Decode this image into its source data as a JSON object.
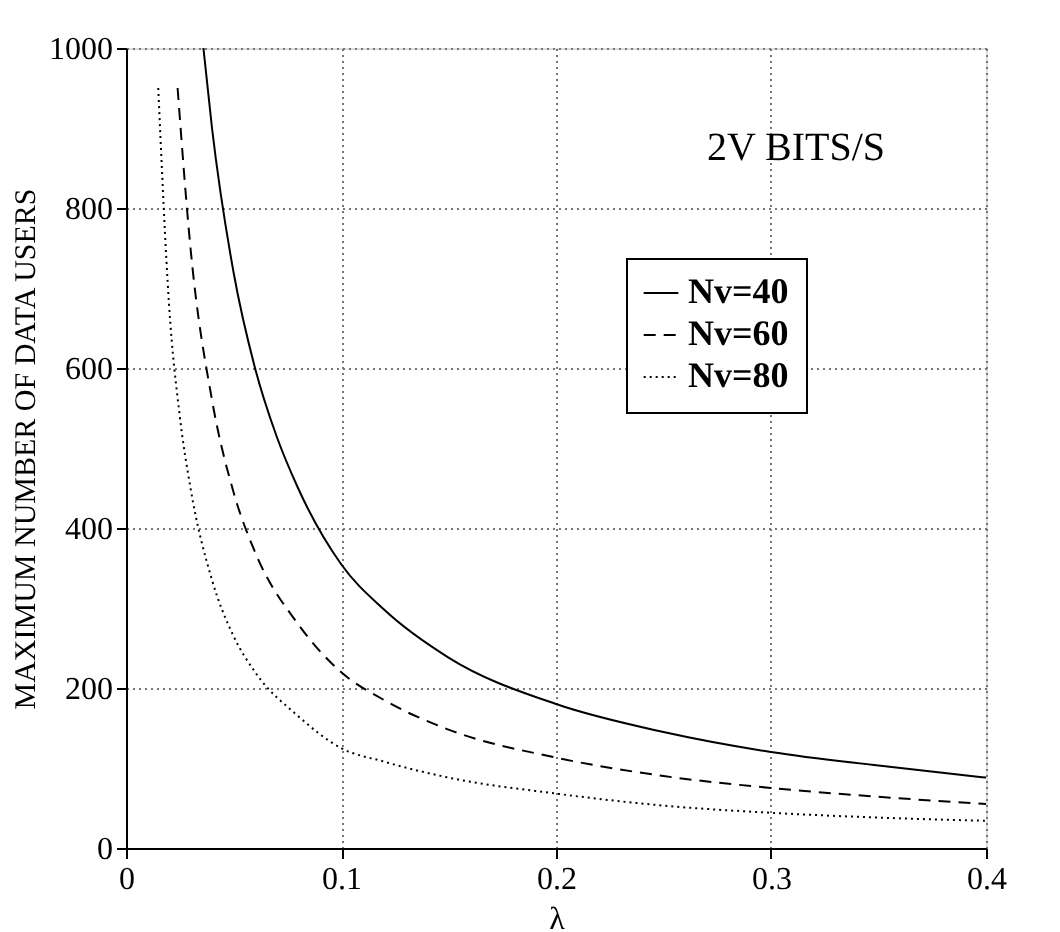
{
  "chart_data": {
    "type": "line",
    "xlabel": "λ",
    "ylabel": "MAXIMUM NUMBER OF DATA USERS",
    "annotations": [
      "2V BITS/S"
    ],
    "xlim": [
      0,
      0.4
    ],
    "ylim": [
      0,
      1000
    ],
    "xticks": [
      0,
      0.1,
      0.2,
      0.3,
      0.4
    ],
    "yticks": [
      0,
      200,
      400,
      600,
      800,
      1000
    ],
    "grid": true,
    "legend": "top right",
    "series": [
      {
        "name": "Nv=40",
        "color": "#000000",
        "line_style": "solid",
        "x": [
          0.036,
          0.04,
          0.05,
          0.06,
          0.07,
          0.08,
          0.1,
          0.12,
          0.15,
          0.2,
          0.25,
          0.3,
          0.35,
          0.4
        ],
        "values": [
          1000,
          900,
          720,
          600,
          515,
          450,
          355,
          298,
          238,
          180,
          145,
          120,
          103,
          88
        ]
      },
      {
        "name": "Nv=60",
        "color": "#000000",
        "line_style": "dashed",
        "x": [
          0.024,
          0.03,
          0.04,
          0.05,
          0.06,
          0.08,
          0.1,
          0.12,
          0.15,
          0.2,
          0.25,
          0.3,
          0.35,
          0.4
        ],
        "values": [
          950,
          750,
          560,
          445,
          370,
          280,
          220,
          185,
          148,
          113,
          90,
          75,
          64,
          55
        ]
      },
      {
        "name": "Nv=80",
        "color": "#000000",
        "line_style": "dotted",
        "x": [
          0.015,
          0.02,
          0.025,
          0.03,
          0.04,
          0.05,
          0.06,
          0.08,
          0.1,
          0.12,
          0.15,
          0.2,
          0.25,
          0.3,
          0.35,
          0.4
        ],
        "values": [
          950,
          680,
          540,
          450,
          335,
          265,
          220,
          165,
          125,
          108,
          88,
          68,
          53,
          44,
          38,
          34
        ]
      }
    ]
  }
}
